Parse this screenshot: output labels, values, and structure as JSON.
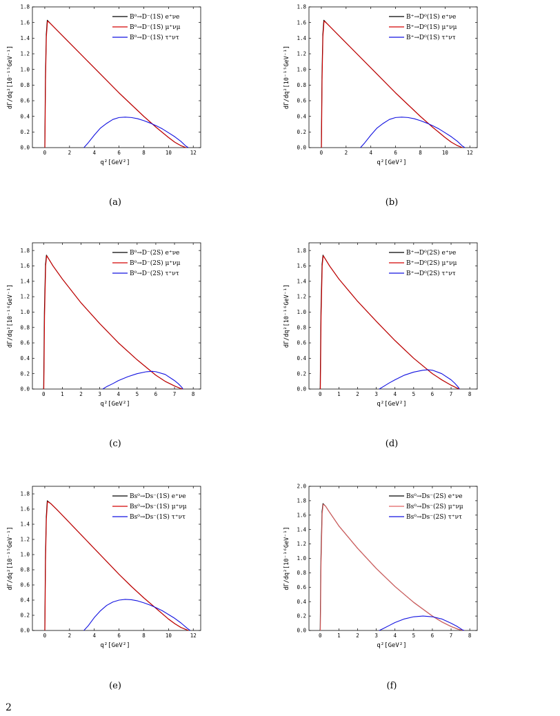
{
  "caption_fragment": "2",
  "colors": {
    "electron": "#000000",
    "muon": "#d40000",
    "tau": "#1010e0"
  },
  "chart_data": [
    {
      "panel": "(a)",
      "type": "line",
      "ylabel": "dΓ/dq²[10⁻¹⁵GeV⁻¹]",
      "xlabel": "q²[GeV²]",
      "xlim": [
        -1,
        12.6
      ],
      "ylim": [
        0,
        1.8
      ],
      "xticks": [
        0,
        2,
        4,
        6,
        8,
        10,
        12
      ],
      "yticks": [
        0.0,
        0.2,
        0.4,
        0.6,
        0.8,
        1.0,
        1.2,
        1.4,
        1.6,
        1.8
      ],
      "legend_position": "top-right",
      "series": [
        {
          "name": "B⁰→D⁻(1S) e⁺νe",
          "color": "#000000",
          "x": [
            0,
            0.05,
            0.12,
            0.2,
            0.5,
            1,
            2,
            3,
            4,
            5,
            6,
            7,
            8,
            9,
            10,
            10.5,
            11,
            11.4
          ],
          "y": [
            0,
            0.9,
            1.45,
            1.63,
            1.58,
            1.5,
            1.34,
            1.18,
            1.02,
            0.86,
            0.7,
            0.55,
            0.4,
            0.26,
            0.13,
            0.07,
            0.025,
            0
          ]
        },
        {
          "name": "B⁰→D⁻(1S) μ⁺νμ",
          "color": "#d40000",
          "x": [
            0.011,
            0.06,
            0.13,
            0.22,
            0.5,
            1,
            2,
            3,
            4,
            5,
            6,
            7,
            8,
            9,
            10,
            10.5,
            11,
            11.4
          ],
          "y": [
            0,
            0.85,
            1.42,
            1.62,
            1.58,
            1.5,
            1.34,
            1.18,
            1.02,
            0.86,
            0.7,
            0.55,
            0.4,
            0.26,
            0.13,
            0.07,
            0.025,
            0
          ]
        },
        {
          "name": "B⁰→D⁻(1S) τ⁺ντ",
          "color": "#1010e0",
          "x": [
            3.16,
            3.5,
            4,
            4.5,
            5,
            5.5,
            6,
            6.5,
            7,
            7.5,
            8,
            8.5,
            9,
            9.5,
            10,
            10.5,
            11,
            11.4,
            11.6
          ],
          "y": [
            0,
            0.06,
            0.16,
            0.25,
            0.31,
            0.36,
            0.385,
            0.39,
            0.385,
            0.37,
            0.345,
            0.315,
            0.28,
            0.24,
            0.19,
            0.14,
            0.08,
            0.02,
            0
          ]
        }
      ]
    },
    {
      "panel": "(b)",
      "type": "line",
      "ylabel": "dΓ/dq²[10⁻¹⁵GeV⁻¹]",
      "xlabel": "q²[GeV²]",
      "xlim": [
        -1,
        12.6
      ],
      "ylim": [
        0,
        1.8
      ],
      "xticks": [
        0,
        2,
        4,
        6,
        8,
        10,
        12
      ],
      "yticks": [
        0.0,
        0.2,
        0.4,
        0.6,
        0.8,
        1.0,
        1.2,
        1.4,
        1.6,
        1.8
      ],
      "legend_position": "top-right",
      "series": [
        {
          "name": "B⁺→D⁰(1S) e⁺νe",
          "color": "#000000",
          "x": [
            0,
            0.05,
            0.12,
            0.2,
            0.5,
            1,
            2,
            3,
            4,
            5,
            6,
            7,
            8,
            9,
            10,
            10.5,
            11,
            11.4
          ],
          "y": [
            0,
            0.9,
            1.45,
            1.63,
            1.58,
            1.5,
            1.34,
            1.18,
            1.02,
            0.86,
            0.7,
            0.55,
            0.4,
            0.26,
            0.13,
            0.07,
            0.025,
            0
          ]
        },
        {
          "name": "B⁺→D⁰(1S) μ⁺νμ",
          "color": "#d40000",
          "x": [
            0.011,
            0.06,
            0.13,
            0.22,
            0.5,
            1,
            2,
            3,
            4,
            5,
            6,
            7,
            8,
            9,
            10,
            10.5,
            11,
            11.4
          ],
          "y": [
            0,
            0.85,
            1.42,
            1.62,
            1.58,
            1.5,
            1.34,
            1.18,
            1.02,
            0.86,
            0.7,
            0.55,
            0.4,
            0.26,
            0.13,
            0.07,
            0.025,
            0
          ]
        },
        {
          "name": "B⁺→D⁰(1S) τ⁺ντ",
          "color": "#1010e0",
          "x": [
            3.16,
            3.5,
            4,
            4.5,
            5,
            5.5,
            6,
            6.5,
            7,
            7.5,
            8,
            8.5,
            9,
            9.5,
            10,
            10.5,
            11,
            11.4,
            11.6
          ],
          "y": [
            0,
            0.06,
            0.16,
            0.25,
            0.31,
            0.36,
            0.385,
            0.39,
            0.385,
            0.37,
            0.345,
            0.315,
            0.28,
            0.24,
            0.19,
            0.14,
            0.08,
            0.02,
            0
          ]
        }
      ]
    },
    {
      "panel": "(c)",
      "type": "line",
      "ylabel": "dΓ/dq²[10⁻¹⁶GeV⁻¹]",
      "xlabel": "q²[GeV²]",
      "xlim": [
        -0.6,
        8.4
      ],
      "ylim": [
        0,
        1.9
      ],
      "xticks": [
        0,
        1,
        2,
        3,
        4,
        5,
        6,
        7,
        8
      ],
      "yticks": [
        0.0,
        0.2,
        0.4,
        0.6,
        0.8,
        1.0,
        1.2,
        1.4,
        1.6,
        1.8
      ],
      "legend_position": "top-right",
      "series": [
        {
          "name": "B⁰→D⁻(2S) e⁺νe",
          "color": "#000000",
          "x": [
            0,
            0.04,
            0.1,
            0.15,
            0.3,
            0.5,
            1,
            2,
            3,
            4,
            5,
            6,
            6.5,
            7,
            7.3,
            7.45
          ],
          "y": [
            0,
            1.0,
            1.62,
            1.74,
            1.68,
            1.6,
            1.43,
            1.12,
            0.85,
            0.6,
            0.38,
            0.18,
            0.1,
            0.04,
            0.01,
            0
          ]
        },
        {
          "name": "B⁰→D⁻(2S) μ⁺νμ",
          "color": "#d40000",
          "x": [
            0.011,
            0.05,
            0.11,
            0.16,
            0.3,
            0.5,
            1,
            2,
            3,
            4,
            5,
            6,
            6.5,
            7,
            7.3,
            7.45
          ],
          "y": [
            0,
            0.95,
            1.6,
            1.73,
            1.68,
            1.6,
            1.43,
            1.12,
            0.85,
            0.6,
            0.38,
            0.18,
            0.1,
            0.04,
            0.01,
            0
          ]
        },
        {
          "name": "B⁰→D⁻(2S) τ⁺ντ",
          "color": "#1010e0",
          "x": [
            3.16,
            3.4,
            3.7,
            4,
            4.5,
            5,
            5.5,
            5.8,
            6,
            6.5,
            7,
            7.2,
            7.4,
            7.45
          ],
          "y": [
            0,
            0.035,
            0.07,
            0.11,
            0.16,
            0.2,
            0.225,
            0.23,
            0.225,
            0.19,
            0.11,
            0.07,
            0.02,
            0
          ]
        }
      ]
    },
    {
      "panel": "(d)",
      "type": "line",
      "ylabel": "dΓ/dq²[10⁻¹⁶GeV⁻¹]",
      "xlabel": "q²[GeV²]",
      "xlim": [
        -0.6,
        8.4
      ],
      "ylim": [
        0,
        1.9
      ],
      "xticks": [
        0,
        1,
        2,
        3,
        4,
        5,
        6,
        7,
        8
      ],
      "yticks": [
        0.0,
        0.2,
        0.4,
        0.6,
        0.8,
        1.0,
        1.2,
        1.4,
        1.6,
        1.8
      ],
      "legend_position": "top-right",
      "series": [
        {
          "name": "B⁺→D⁰(2S) e⁺νe",
          "color": "#000000",
          "x": [
            0,
            0.04,
            0.1,
            0.15,
            0.3,
            0.5,
            1,
            2,
            3,
            4,
            5,
            6,
            6.5,
            7,
            7.3,
            7.45
          ],
          "y": [
            0,
            1.0,
            1.62,
            1.74,
            1.68,
            1.6,
            1.43,
            1.14,
            0.88,
            0.63,
            0.4,
            0.2,
            0.12,
            0.05,
            0.015,
            0
          ]
        },
        {
          "name": "B⁺→D⁰(2S) μ⁺νμ",
          "color": "#d40000",
          "x": [
            0.011,
            0.05,
            0.11,
            0.16,
            0.3,
            0.5,
            1,
            2,
            3,
            4,
            5,
            6,
            6.5,
            7,
            7.3,
            7.45
          ],
          "y": [
            0,
            0.95,
            1.6,
            1.73,
            1.68,
            1.6,
            1.43,
            1.14,
            0.88,
            0.63,
            0.4,
            0.2,
            0.12,
            0.05,
            0.015,
            0
          ]
        },
        {
          "name": "B⁺→D⁰(2S) τ⁺ντ",
          "color": "#1010e0",
          "x": [
            3.16,
            3.4,
            3.7,
            4,
            4.5,
            5,
            5.5,
            5.8,
            6,
            6.5,
            7,
            7.2,
            7.4,
            7.45
          ],
          "y": [
            0,
            0.035,
            0.08,
            0.12,
            0.18,
            0.22,
            0.245,
            0.25,
            0.245,
            0.2,
            0.12,
            0.075,
            0.02,
            0
          ]
        }
      ]
    },
    {
      "panel": "(e)",
      "type": "line",
      "ylabel": "dΓ/dq²[10⁻¹⁵GeV⁻¹]",
      "xlabel": "q²[GeV²]",
      "xlim": [
        -1,
        12.6
      ],
      "ylim": [
        0,
        1.9
      ],
      "xticks": [
        0,
        2,
        4,
        6,
        8,
        10,
        12
      ],
      "yticks": [
        0.0,
        0.2,
        0.4,
        0.6,
        0.8,
        1.0,
        1.2,
        1.4,
        1.6,
        1.8
      ],
      "legend_position": "top-right",
      "series": [
        {
          "name": "Bs⁰→Ds⁻(1S) e⁺νe",
          "color": "#000000",
          "x": [
            0,
            0.05,
            0.12,
            0.2,
            0.5,
            1,
            2,
            3,
            4,
            5,
            6,
            7,
            8,
            9,
            10,
            10.5,
            11,
            11.6
          ],
          "y": [
            0,
            0.95,
            1.5,
            1.71,
            1.67,
            1.59,
            1.42,
            1.25,
            1.08,
            0.91,
            0.74,
            0.58,
            0.43,
            0.29,
            0.15,
            0.09,
            0.04,
            0
          ]
        },
        {
          "name": "Bs⁰→Ds⁻(1S) μ⁺νμ",
          "color": "#d40000",
          "x": [
            0.011,
            0.06,
            0.13,
            0.22,
            0.5,
            1,
            2,
            3,
            4,
            5,
            6,
            7,
            8,
            9,
            10,
            10.5,
            11,
            11.6
          ],
          "y": [
            0,
            0.9,
            1.47,
            1.7,
            1.67,
            1.59,
            1.42,
            1.25,
            1.08,
            0.91,
            0.74,
            0.58,
            0.43,
            0.29,
            0.15,
            0.09,
            0.04,
            0
          ]
        },
        {
          "name": "Bs⁰→Ds⁻(1S) τ⁺ντ",
          "color": "#1010e0",
          "x": [
            3.16,
            3.5,
            4,
            4.5,
            5,
            5.5,
            6,
            6.5,
            7,
            7.5,
            8,
            8.5,
            9,
            9.5,
            10,
            10.5,
            11,
            11.5,
            11.75
          ],
          "y": [
            0,
            0.06,
            0.17,
            0.26,
            0.33,
            0.375,
            0.4,
            0.41,
            0.405,
            0.39,
            0.365,
            0.335,
            0.3,
            0.26,
            0.21,
            0.16,
            0.1,
            0.03,
            0
          ]
        }
      ]
    },
    {
      "panel": "(f)",
      "type": "line",
      "ylabel": "dΓ/dq²[10⁻¹⁶GeV⁻¹]",
      "xlabel": "q²[GeV²]",
      "xlim": [
        -0.6,
        8.4
      ],
      "ylim": [
        0,
        2.0
      ],
      "xticks": [
        0,
        1,
        2,
        3,
        4,
        5,
        6,
        7,
        8
      ],
      "yticks": [
        0.0,
        0.2,
        0.4,
        0.6,
        0.8,
        1.0,
        1.2,
        1.4,
        1.6,
        1.8,
        2.0
      ],
      "legend_position": "top-right",
      "series": [
        {
          "name": "Bs⁰→Ds⁻(2S) e⁺νe",
          "color": "#000000",
          "x": [
            0,
            0.04,
            0.1,
            0.15,
            0.3,
            0.5,
            1,
            2,
            3,
            4,
            5,
            6,
            6.5,
            7,
            7.4,
            7.7
          ],
          "y": [
            0,
            1.0,
            1.65,
            1.76,
            1.72,
            1.64,
            1.45,
            1.14,
            0.86,
            0.61,
            0.39,
            0.2,
            0.12,
            0.055,
            0.015,
            0
          ]
        },
        {
          "name": "Bs⁰→Ds⁻(2S) μ⁺νμ",
          "color": "#e06060",
          "x": [
            0.011,
            0.05,
            0.11,
            0.16,
            0.3,
            0.5,
            1,
            2,
            3,
            4,
            5,
            6,
            6.5,
            7,
            7.4,
            7.7
          ],
          "y": [
            0,
            0.95,
            1.62,
            1.75,
            1.72,
            1.64,
            1.45,
            1.14,
            0.86,
            0.61,
            0.39,
            0.2,
            0.12,
            0.055,
            0.015,
            0
          ]
        },
        {
          "name": "Bs⁰→Ds⁻(2S) τ⁺ντ",
          "color": "#1010e0",
          "x": [
            3.16,
            3.4,
            3.7,
            4,
            4.5,
            5,
            5.5,
            6,
            6.5,
            7,
            7.3,
            7.6,
            7.7
          ],
          "y": [
            0,
            0.03,
            0.07,
            0.11,
            0.16,
            0.19,
            0.2,
            0.19,
            0.16,
            0.1,
            0.06,
            0.01,
            0
          ]
        }
      ]
    }
  ]
}
